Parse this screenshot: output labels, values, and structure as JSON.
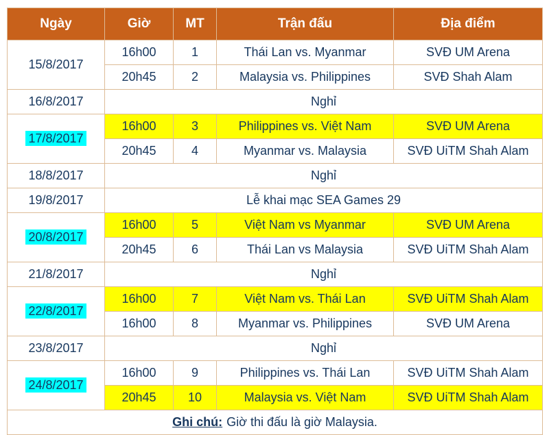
{
  "headers": [
    "Ngày",
    "Giờ",
    "MT",
    "Trận đấu",
    "Địa điểm"
  ],
  "days": [
    {
      "date": "15/8/2017",
      "date_highlight": false,
      "type": "matches",
      "matches": [
        {
          "time": "16h00",
          "mt": "1",
          "match": "Thái Lan vs. Myanmar",
          "venue": "SVĐ UM Arena",
          "highlight": false
        },
        {
          "time": "20h45",
          "mt": "2",
          "match": "Malaysia vs. Philippines",
          "venue": "SVĐ Shah Alam",
          "highlight": false
        }
      ]
    },
    {
      "date": "16/8/2017",
      "date_highlight": false,
      "type": "note",
      "text": "Nghỉ"
    },
    {
      "date": "17/8/2017",
      "date_highlight": true,
      "type": "matches",
      "matches": [
        {
          "time": "16h00",
          "mt": "3",
          "match": "Philippines vs. Việt Nam",
          "venue": "SVĐ UM Arena",
          "highlight": true
        },
        {
          "time": "20h45",
          "mt": "4",
          "match": "Myanmar vs. Malaysia",
          "venue": "SVĐ UiTM Shah Alam",
          "highlight": false
        }
      ]
    },
    {
      "date": "18/8/2017",
      "date_highlight": false,
      "type": "note",
      "text": "Nghỉ"
    },
    {
      "date": "19/8/2017",
      "date_highlight": false,
      "type": "note",
      "text": "Lễ khai mạc SEA Games 29"
    },
    {
      "date": "20/8/2017",
      "date_highlight": true,
      "type": "matches",
      "matches": [
        {
          "time": "16h00",
          "mt": "5",
          "match": "Việt Nam vs Myanmar",
          "venue": "SVĐ UM Arena",
          "highlight": true
        },
        {
          "time": "20h45",
          "mt": "6",
          "match": "Thái Lan vs Malaysia",
          "venue": "SVĐ UiTM Shah Alam",
          "highlight": false
        }
      ]
    },
    {
      "date": "21/8/2017",
      "date_highlight": false,
      "type": "note",
      "text": "Nghỉ"
    },
    {
      "date": "22/8/2017",
      "date_highlight": true,
      "type": "matches",
      "matches": [
        {
          "time": "16h00",
          "mt": "7",
          "match": "Việt Nam vs. Thái Lan",
          "venue": "SVĐ UiTM Shah Alam",
          "highlight": true
        },
        {
          "time": "16h00",
          "mt": "8",
          "match": "Myanmar vs. Philippines",
          "venue": "SVĐ UM Arena",
          "highlight": false
        }
      ]
    },
    {
      "date": "23/8/2017",
      "date_highlight": false,
      "type": "note",
      "text": "Nghỉ"
    },
    {
      "date": "24/8/2017",
      "date_highlight": true,
      "type": "matches",
      "matches": [
        {
          "time": "16h00",
          "mt": "9",
          "match": "Philippines vs. Thái Lan",
          "venue": "SVĐ UiTM Shah Alam",
          "highlight": false
        },
        {
          "time": "20h45",
          "mt": "10",
          "match": "Malaysia vs. Việt Nam",
          "venue": "SVĐ UiTM Shah Alam",
          "highlight": true
        }
      ]
    }
  ],
  "footer": {
    "label": "Ghi chú:",
    "text": "Giờ thi đấu là giờ Malaysia."
  },
  "colors": {
    "header_bg": "#c8611b",
    "header_text": "#ffffff",
    "cell_text": "#17375e",
    "row_highlight": "#ffff00",
    "date_highlight": "#00ffff",
    "border": "#ddbb96"
  }
}
